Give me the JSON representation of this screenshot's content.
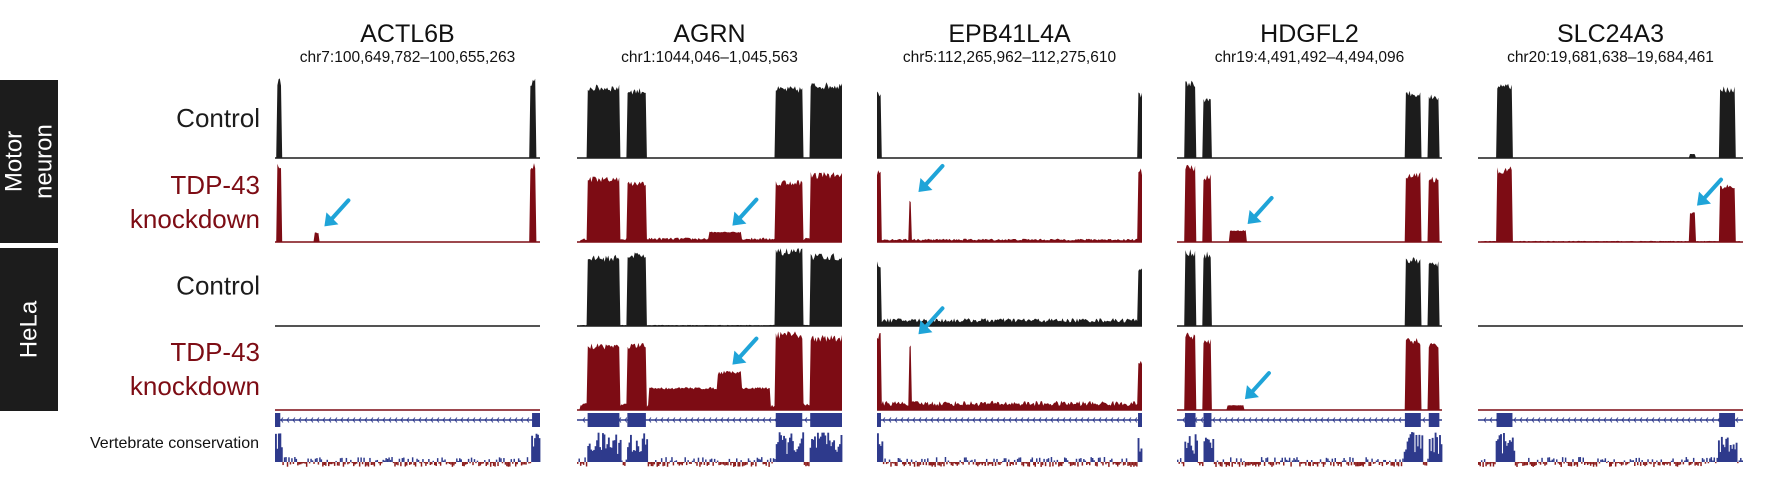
{
  "colors": {
    "control": "#1c1c1c",
    "knockdown": "#7d0c14",
    "arrow": "#1fa4d8",
    "gene_model": "#2e3a8c",
    "cons_pos": "#2e3a8c",
    "cons_neg": "#8c1c1c",
    "side_box": "#1c1c1c"
  },
  "groups": [
    {
      "label_lines": [
        "Motor",
        "neuron"
      ]
    },
    {
      "label_lines": [
        "HeLa"
      ]
    }
  ],
  "rows": [
    {
      "lines": [
        "Control"
      ],
      "condition": "control"
    },
    {
      "lines": [
        "TDP-43",
        "knockdown"
      ],
      "condition": "knockdown"
    },
    {
      "lines": [
        "Control"
      ],
      "condition": "control"
    },
    {
      "lines": [
        "TDP-43",
        "knockdown"
      ],
      "condition": "knockdown"
    }
  ],
  "conservation_label": "Vertebrate conservation",
  "genes": [
    {
      "name": "ACTL6B",
      "coords": "chr7:100,649,782–100,655,263",
      "exons": [
        [
          0,
          0.02
        ],
        [
          0.97,
          1
        ]
      ],
      "tracks": [
        {
          "peaks": [
            [
              0.005,
              0.025,
              1.0
            ],
            [
              0.96,
              0.985,
              1.0
            ]
          ],
          "base": 0
        },
        {
          "peaks": [
            [
              0.005,
              0.025,
              1.0
            ],
            [
              0.15,
              0.165,
              0.12
            ],
            [
              0.96,
              0.985,
              1.0
            ]
          ],
          "base": 0,
          "arrow": 0.16
        },
        {
          "peaks": [],
          "base": 0
        },
        {
          "peaks": [],
          "base": 0
        }
      ]
    },
    {
      "name": "AGRN",
      "coords": "chr1:1044,046–1,045,563",
      "exons": [
        [
          0.04,
          0.16
        ],
        [
          0.19,
          0.26
        ],
        [
          0.75,
          0.85
        ],
        [
          0.88,
          1
        ]
      ],
      "tracks": [
        {
          "peaks": [
            [
              0.04,
              0.16,
              0.92
            ],
            [
              0.19,
              0.26,
              0.88
            ],
            [
              0.75,
              0.85,
              0.9
            ],
            [
              0.88,
              1,
              0.95
            ]
          ],
          "base": 0
        },
        {
          "peaks": [
            [
              0.04,
              0.16,
              0.82
            ],
            [
              0.19,
              0.26,
              0.76
            ],
            [
              0.75,
              0.85,
              0.78
            ],
            [
              0.88,
              1,
              0.88
            ],
            [
              0.5,
              0.62,
              0.13
            ]
          ],
          "base": 0.04,
          "arrow": 0.56
        },
        {
          "peaks": [
            [
              0.04,
              0.16,
              0.88
            ],
            [
              0.19,
              0.26,
              0.92
            ],
            [
              0.75,
              0.85,
              0.96
            ],
            [
              0.88,
              1,
              0.9
            ]
          ],
          "base": 0.01
        },
        {
          "peaks": [
            [
              0.04,
              0.16,
              0.82
            ],
            [
              0.19,
              0.26,
              0.82
            ],
            [
              0.75,
              0.85,
              0.96
            ],
            [
              0.88,
              1,
              0.92
            ],
            [
              0.27,
              0.73,
              0.28
            ],
            [
              0.53,
              0.62,
              0.48
            ]
          ],
          "base": 0.06,
          "arrow": 0.56
        }
      ]
    },
    {
      "name": "EPB41L4A",
      "coords": "chr5:112,265,962–112,275,610",
      "exons": [
        [
          0.0,
          0.015
        ],
        [
          0.985,
          1
        ]
      ],
      "tracks": [
        {
          "peaks": [
            [
              0.0,
              0.015,
              0.85
            ],
            [
              0.985,
              1,
              0.82
            ]
          ],
          "base": 0
        },
        {
          "peaks": [
            [
              0.0,
              0.015,
              0.92
            ],
            [
              0.12,
              0.13,
              0.55
            ],
            [
              0.985,
              1,
              0.92
            ]
          ],
          "base": 0.03,
          "arrow": 0.13
        },
        {
          "peaks": [
            [
              0.0,
              0.015,
              0.8
            ],
            [
              0.985,
              1,
              0.75
            ]
          ],
          "base": 0.07
        },
        {
          "peaks": [
            [
              0.0,
              0.015,
              0.95
            ],
            [
              0.12,
              0.13,
              0.85
            ],
            [
              0.985,
              1,
              0.6
            ]
          ],
          "base": 0.08,
          "arrow": 0.13
        }
      ]
    },
    {
      "name": "HDGFL2",
      "coords": "chr19:4,491,492–4,494,096",
      "exons": [
        [
          0.03,
          0.07
        ],
        [
          0.1,
          0.13
        ],
        [
          0.86,
          0.92
        ],
        [
          0.95,
          0.99
        ]
      ],
      "tracks": [
        {
          "peaks": [
            [
              0.03,
              0.07,
              0.98
            ],
            [
              0.1,
              0.13,
              0.75
            ],
            [
              0.86,
              0.92,
              0.85
            ],
            [
              0.95,
              0.99,
              0.8
            ]
          ],
          "base": 0
        },
        {
          "peaks": [
            [
              0.03,
              0.07,
              0.98
            ],
            [
              0.1,
              0.13,
              0.85
            ],
            [
              0.86,
              0.92,
              0.88
            ],
            [
              0.95,
              0.99,
              0.82
            ],
            [
              0.2,
              0.26,
              0.15
            ]
          ],
          "base": 0,
          "arrow": 0.24
        },
        {
          "peaks": [
            [
              0.03,
              0.07,
              0.95
            ],
            [
              0.1,
              0.13,
              0.92
            ],
            [
              0.86,
              0.92,
              0.85
            ],
            [
              0.95,
              0.99,
              0.8
            ]
          ],
          "base": 0
        },
        {
          "peaks": [
            [
              0.03,
              0.07,
              0.95
            ],
            [
              0.1,
              0.13,
              0.88
            ],
            [
              0.86,
              0.92,
              0.88
            ],
            [
              0.95,
              0.99,
              0.82
            ],
            [
              0.19,
              0.25,
              0.06
            ]
          ],
          "base": 0,
          "arrow": 0.23
        }
      ]
    },
    {
      "name": "SLC24A3",
      "coords": "chr20:19,681,638–19,684,461",
      "exons": [
        [
          0.07,
          0.13
        ],
        [
          0.91,
          0.97
        ]
      ],
      "tracks": [
        {
          "peaks": [
            [
              0.07,
              0.13,
              0.95
            ],
            [
              0.91,
              0.97,
              0.9
            ],
            [
              0.8,
              0.82,
              0.05
            ]
          ],
          "base": 0
        },
        {
          "peaks": [
            [
              0.07,
              0.13,
              0.95
            ],
            [
              0.91,
              0.97,
              0.72
            ],
            [
              0.8,
              0.82,
              0.38
            ]
          ],
          "base": 0.01,
          "arrow": 0.8
        },
        {
          "peaks": [],
          "base": 0
        },
        {
          "peaks": [],
          "base": 0
        }
      ]
    }
  ]
}
